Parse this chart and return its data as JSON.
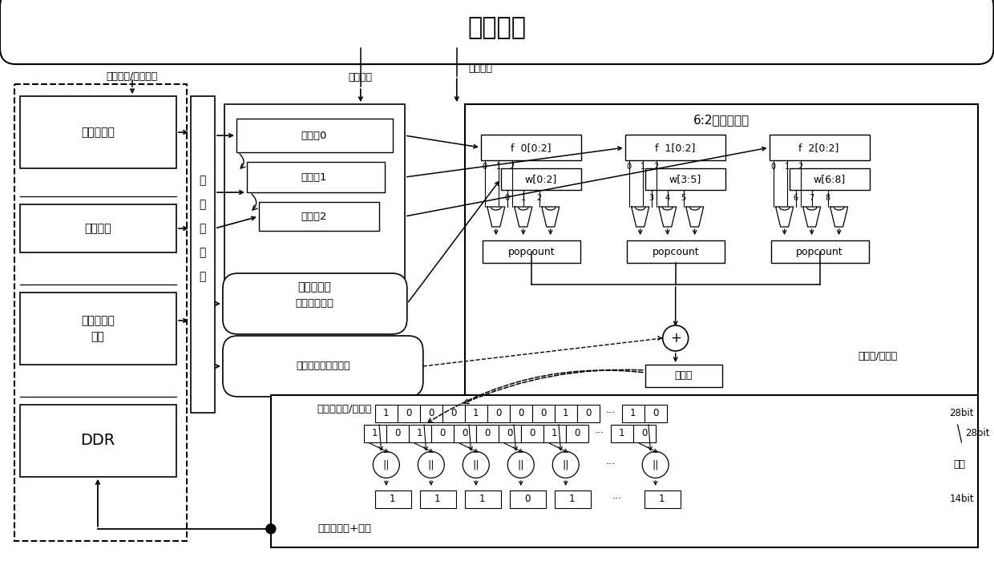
{
  "title": "控制模块",
  "rw_addr": "读写使能/读写地址",
  "rw_ctrl": "读写控制",
  "calc_en": "计算使能",
  "feature": "特征图数据",
  "weight": "权重数据",
  "bn1": "批量标准化",
  "bn2": "数据",
  "ddr": "DDR",
  "pipe1": "流",
  "pipe2": "水",
  "pipe3": "线",
  "pipe4": "模",
  "pipe5": "块",
  "reg0": "寄存劇0",
  "reg1": "寄存劇1",
  "reg2": "寄存劇2",
  "matrix": "矩阵生成器",
  "wbuf": "权重数据缓冲",
  "bnbuf": "批量标准化参数缓冲",
  "compress": "6:2压缩树模块",
  "f0": "f  0[0:2]",
  "f1": "f  1[0:2]",
  "f2": "f  2[0:2]",
  "w02": "w[0:2]",
  "w35": "w[3:5]",
  "w68": "w[6:8]",
  "popcount": "popcount",
  "sign": "符号位",
  "conv_fc": "卷积层/全连接",
  "layer2": "第二层卷积/全连接",
  "layer1": "第一层卷积+池化",
  "pooling": "池化",
  "b28": "28bit",
  "b14": "14bit",
  "bits_r1": [
    "1",
    "0",
    "0",
    "0",
    "1",
    "0",
    "0",
    "0",
    "1",
    "0",
    "⋯",
    "1",
    "0"
  ],
  "bits_r2": [
    "1",
    "0",
    "1",
    "0",
    "0",
    "0",
    "0",
    "0",
    "1",
    "0",
    "⋯",
    "1",
    "0"
  ],
  "bits_r3": [
    "1",
    "1",
    "1",
    "0",
    "1",
    "⋯",
    "1"
  ]
}
